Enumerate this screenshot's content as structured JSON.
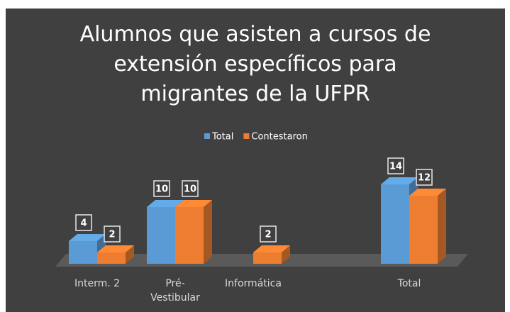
{
  "chart_data": {
    "type": "bar3d",
    "title": "Alumnos que asisten a cursos de extensión específicos para migrantes de la UFPR",
    "categories": [
      "Interm. 2",
      "Pré-Vestibular",
      "Informática",
      null,
      "Total"
    ],
    "series": [
      {
        "name": "Total",
        "color": "#5b9bd5",
        "values": [
          4,
          10,
          null,
          null,
          14
        ]
      },
      {
        "name": "Contestaron",
        "color": "#ed7d31",
        "values": [
          2,
          10,
          2,
          null,
          12
        ]
      }
    ],
    "legend": "top"
  }
}
